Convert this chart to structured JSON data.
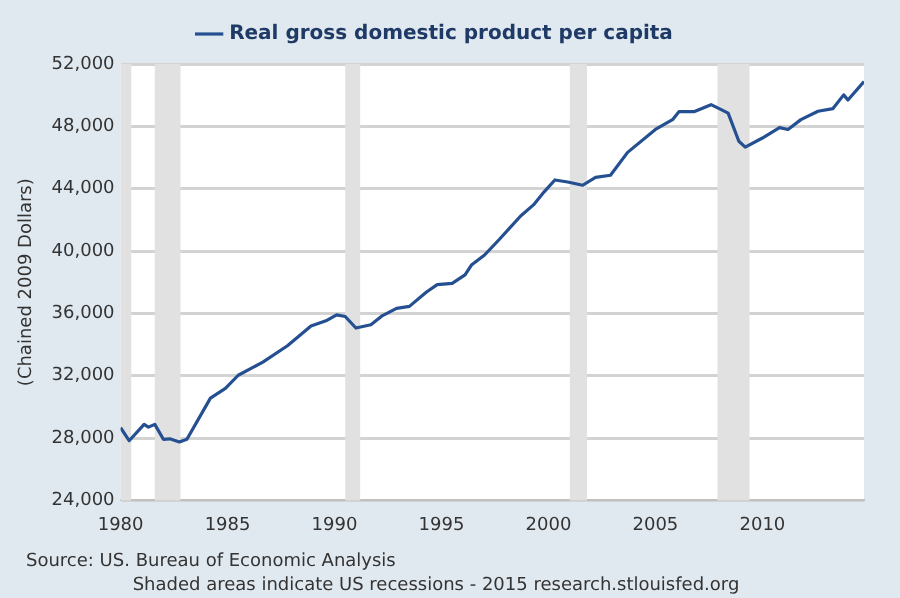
{
  "chart_data": {
    "type": "line",
    "ylabel": "(Chained 2009 Dollars)",
    "x": [
      1980.0,
      1980.4,
      1981.1,
      1981.3,
      1981.6,
      1982.0,
      1982.3,
      1982.75,
      1983.1,
      1984.2,
      1984.9,
      1985.5,
      1986.65,
      1987.8,
      1988.9,
      1989.6,
      1990.1,
      1990.5,
      1991.0,
      1991.7,
      1992.2,
      1992.9,
      1993.5,
      1994.3,
      1994.8,
      1995.5,
      1996.1,
      1996.4,
      1997.0,
      1997.7,
      1998.7,
      1999.3,
      1999.8,
      2000.3,
      2000.9,
      2001.6,
      2002.2,
      2002.9,
      2003.7,
      2005.0,
      2005.8,
      2006.1,
      2006.8,
      2007.6,
      2008.1,
      2008.4,
      2008.9,
      2009.2,
      2010.0,
      2010.8,
      2011.2,
      2011.8,
      2012.6,
      2013.3,
      2013.8,
      2014.0,
      2014.75
    ],
    "series": [
      {
        "name": "Real gross domestic product per capita",
        "color": "#244f91",
        "values": [
          28670,
          27830,
          28880,
          28700,
          28880,
          27920,
          27950,
          27750,
          27920,
          30560,
          31190,
          32030,
          32870,
          33920,
          35190,
          35520,
          35900,
          35800,
          35060,
          35270,
          35820,
          36320,
          36450,
          37370,
          37840,
          37920,
          38470,
          39100,
          39730,
          40740,
          42250,
          42960,
          43800,
          44560,
          44430,
          44220,
          44730,
          44860,
          46330,
          47800,
          48430,
          48940,
          48940,
          49390,
          49060,
          48850,
          47040,
          46670,
          47250,
          47920,
          47800,
          48430,
          48970,
          49140,
          50020,
          49690,
          50870
        ]
      }
    ],
    "xlim": [
      1980,
      2014.75
    ],
    "xticks": [
      1980,
      1985,
      1990,
      1995,
      2000,
      2005,
      2010
    ],
    "ylim": [
      24000,
      52000
    ],
    "yticks": [
      {
        "value": 24000,
        "label": "24,000"
      },
      {
        "value": 28000,
        "label": "28,000"
      },
      {
        "value": 32000,
        "label": "32,000"
      },
      {
        "value": 36000,
        "label": "36,000"
      },
      {
        "value": 40000,
        "label": "40,000"
      },
      {
        "value": 44000,
        "label": "44,000"
      },
      {
        "value": 48000,
        "label": "48,000"
      },
      {
        "value": 52000,
        "label": "52,000"
      }
    ],
    "bands": [
      {
        "axis": "x",
        "from": 1980.0,
        "to": 1980.5,
        "color": "#e1e1e1"
      },
      {
        "axis": "x",
        "from": 1981.6,
        "to": 1982.8,
        "color": "#e1e1e1"
      },
      {
        "axis": "x",
        "from": 1990.5,
        "to": 1991.2,
        "color": "#e1e1e1"
      },
      {
        "axis": "x",
        "from": 2001.0,
        "to": 2001.8,
        "color": "#e1e1e1"
      },
      {
        "axis": "x",
        "from": 2007.9,
        "to": 2009.4,
        "color": "#e1e1e1"
      }
    ],
    "annotations": [
      "Source: US. Bureau of Economic Analysis",
      "Shaded areas indicate US recessions - 2015 research.stlouisfed.org"
    ],
    "grid": "y",
    "legend": "top",
    "marker": "none",
    "line_style": "solid"
  }
}
